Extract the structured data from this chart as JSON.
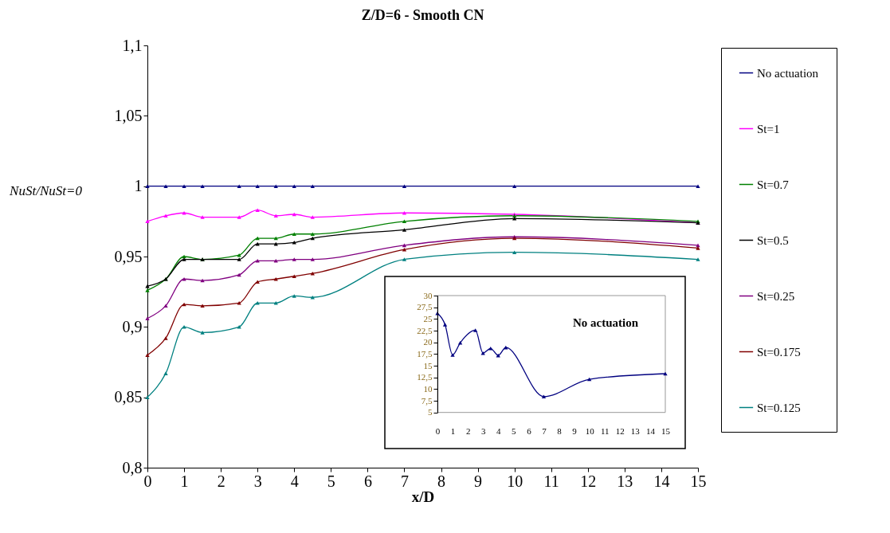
{
  "chart_data": [
    {
      "type": "line",
      "title": "Z/D=6 - Smooth CN",
      "xlabel": "x/D",
      "ylabel": "NuSt/NuSt=0",
      "x": [
        0,
        0.5,
        1,
        1.5,
        2.5,
        3,
        3.5,
        4,
        4.5,
        7,
        10,
        15
      ],
      "xlim": [
        0,
        15
      ],
      "xticks": [
        0,
        1,
        2,
        3,
        4,
        5,
        6,
        7,
        8,
        9,
        10,
        11,
        12,
        13,
        14,
        15
      ],
      "ylim": [
        0.8,
        1.1
      ],
      "yticks": [
        {
          "value": 0.8,
          "label": "0,8"
        },
        {
          "value": 0.85,
          "label": "0,85"
        },
        {
          "value": 0.9,
          "label": "0,9"
        },
        {
          "value": 0.95,
          "label": "0,95"
        },
        {
          "value": 1,
          "label": "1"
        },
        {
          "value": 1.05,
          "label": "1,05"
        },
        {
          "value": 1.1,
          "label": "1,1"
        }
      ],
      "series": [
        {
          "name": "No actuation",
          "color": "#000080",
          "values": [
            1,
            1,
            1,
            1,
            1,
            1,
            1,
            1,
            1,
            1,
            1,
            1
          ]
        },
        {
          "name": "St=1",
          "color": "#ff00ff",
          "values": [
            0.975,
            0.979,
            0.981,
            0.978,
            0.978,
            0.983,
            0.979,
            0.98,
            0.978,
            0.981,
            0.98,
            0.974
          ]
        },
        {
          "name": "St=0.7",
          "color": "#008000",
          "values": [
            0.926,
            0.934,
            0.95,
            0.948,
            0.951,
            0.963,
            0.963,
            0.966,
            0.966,
            0.975,
            0.979,
            0.975
          ]
        },
        {
          "name": "St=0.5",
          "color": "#000000",
          "values": [
            0.929,
            0.934,
            0.948,
            0.948,
            0.948,
            0.959,
            0.959,
            0.96,
            0.963,
            0.969,
            0.977,
            0.974
          ]
        },
        {
          "name": "St=0.25",
          "color": "#800080",
          "values": [
            0.906,
            0.915,
            0.934,
            0.933,
            0.937,
            0.947,
            0.947,
            0.948,
            0.948,
            0.958,
            0.964,
            0.958
          ]
        },
        {
          "name": "St=0.175",
          "color": "#800000",
          "values": [
            0.88,
            0.892,
            0.916,
            0.915,
            0.917,
            0.932,
            0.934,
            0.936,
            0.938,
            0.955,
            0.963,
            0.956
          ]
        },
        {
          "name": "St=0.125",
          "color": "#008080",
          "values": [
            0.85,
            0.867,
            0.9,
            0.896,
            0.9,
            0.917,
            0.917,
            0.922,
            0.921,
            0.948,
            0.953,
            0.948
          ]
        }
      ],
      "marker": "triangle",
      "legend": "right",
      "grid": false
    },
    {
      "type": "line",
      "title": "No actuation",
      "x": [
        0,
        0.5,
        1,
        1.5,
        2.5,
        3,
        3.5,
        4,
        4.5,
        7,
        10,
        15
      ],
      "xlim": [
        0,
        15
      ],
      "xticks": [
        0,
        1,
        2,
        3,
        4,
        5,
        6,
        7,
        8,
        9,
        10,
        11,
        12,
        13,
        14,
        15
      ],
      "ylim": [
        5,
        30
      ],
      "yticks": [
        5,
        {
          "value": 7.5,
          "label": "7,5"
        },
        10,
        {
          "value": 12.5,
          "label": "12,5"
        },
        15,
        {
          "value": 17.5,
          "label": "17,5"
        },
        20,
        {
          "value": 22.5,
          "label": "22,5"
        },
        25,
        {
          "value": 27.5,
          "label": "27,5"
        },
        30
      ],
      "series": [
        {
          "color": "#000080",
          "values": [
            26.2,
            23.8,
            17.3,
            19.9,
            22.6,
            17.7,
            18.7,
            17.2,
            18.9,
            8.4,
            12.1,
            13.3
          ]
        }
      ],
      "marker": "triangle",
      "grid": false
    }
  ]
}
